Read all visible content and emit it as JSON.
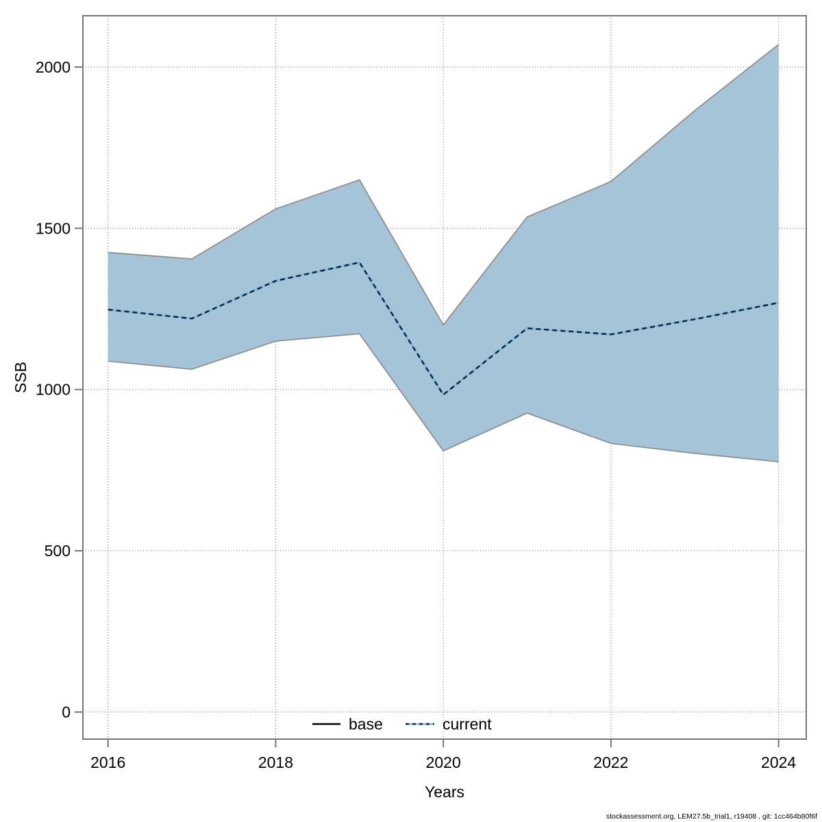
{
  "figure": {
    "background": "#ffffff"
  },
  "footer": {
    "text": "stockassessment.org, LEM27.5b_trial1, r19408 , git: 1cc464b80f6f"
  },
  "chart_data": {
    "type": "area",
    "title": "",
    "xlabel": "Years",
    "ylabel": "SSB",
    "x": [
      2016,
      2017,
      2018,
      2019,
      2020,
      2021,
      2022,
      2023,
      2024
    ],
    "series": [
      {
        "name": "current",
        "line": "dotted",
        "color": "#0b2b47",
        "values": [
          1248,
          1220,
          1337,
          1394,
          984,
          1190,
          1171,
          1218,
          1269
        ]
      }
    ],
    "band": {
      "name": "current-confidence-band",
      "upper": [
        1425,
        1405,
        1560,
        1650,
        1200,
        1535,
        1645,
        1865,
        2070
      ],
      "lower": [
        1088,
        1063,
        1150,
        1173,
        810,
        927,
        833,
        802,
        776
      ],
      "fill": "#a5c4d7",
      "edge_color": "#8f8f8f"
    },
    "legend": [
      {
        "label": "base",
        "line": "solid",
        "color": "#000000"
      },
      {
        "label": "current",
        "line": "dotted",
        "color": "#4d9bd0"
      }
    ],
    "legend_position": "bottom-center",
    "xticks": [
      2016,
      2018,
      2020,
      2022,
      2024
    ],
    "yticks": [
      0,
      500,
      1000,
      1500,
      2000
    ],
    "xlim": [
      2015.7,
      2024.33
    ],
    "ylim": [
      -84,
      2159
    ],
    "grid": true,
    "grid_style": "dotted",
    "colors": {
      "grid": "#3c3c3c",
      "border": "#757575",
      "tick": "#757575",
      "current_underlay": "#7fb8dc",
      "current_dash": "#0b2b47"
    }
  }
}
